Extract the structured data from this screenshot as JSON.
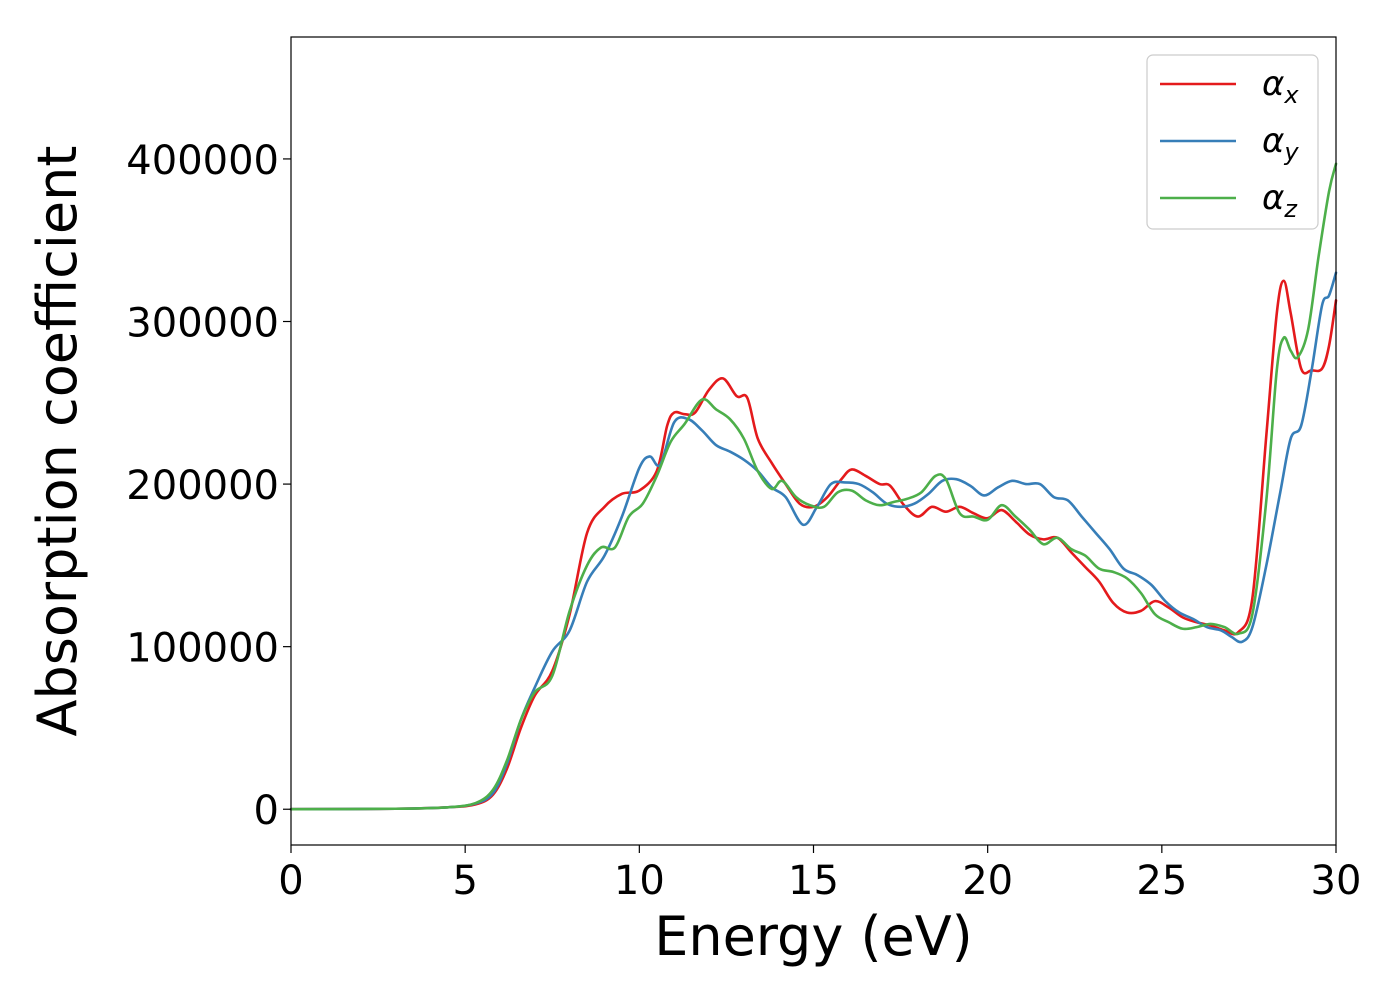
{
  "chart_data": {
    "type": "line",
    "title": "",
    "xlabel": "Energy (eV)",
    "ylabel": "Absorption coefficient",
    "xlim": [
      0,
      30
    ],
    "ylim": [
      -22000,
      475000
    ],
    "xticks": [
      0,
      5,
      10,
      15,
      20,
      25,
      30
    ],
    "xtick_labels": [
      "0",
      "5",
      "10",
      "15",
      "20",
      "25",
      "30"
    ],
    "yticks": [
      0,
      100000,
      200000,
      300000,
      400000
    ],
    "ytick_labels": [
      "0",
      "100000",
      "200000",
      "300000",
      "400000"
    ],
    "grid": false,
    "legend_position": "top-right",
    "series": [
      {
        "name": "α",
        "subscript": "x",
        "color": "#e41a1c",
        "points": [
          [
            0,
            0
          ],
          [
            3,
            300
          ],
          [
            4.5,
            1200
          ],
          [
            5.3,
            3000
          ],
          [
            5.8,
            9000
          ],
          [
            6.2,
            25000
          ],
          [
            6.6,
            50000
          ],
          [
            7,
            70000
          ],
          [
            7.5,
            85000
          ],
          [
            8,
            120000
          ],
          [
            8.5,
            170000
          ],
          [
            9,
            186000
          ],
          [
            9.5,
            194000
          ],
          [
            10,
            196000
          ],
          [
            10.5,
            208000
          ],
          [
            10.8,
            236000
          ],
          [
            11,
            244000
          ],
          [
            11.3,
            243000
          ],
          [
            11.6,
            244000
          ],
          [
            12,
            258000
          ],
          [
            12.4,
            265000
          ],
          [
            12.8,
            254000
          ],
          [
            13.1,
            253000
          ],
          [
            13.4,
            228000
          ],
          [
            13.8,
            213000
          ],
          [
            14.2,
            200000
          ],
          [
            14.6,
            188000
          ],
          [
            15,
            186000
          ],
          [
            15.4,
            192000
          ],
          [
            15.8,
            203000
          ],
          [
            16.1,
            209000
          ],
          [
            16.5,
            205000
          ],
          [
            16.9,
            200000
          ],
          [
            17.2,
            199000
          ],
          [
            17.6,
            187000
          ],
          [
            18,
            180000
          ],
          [
            18.4,
            186000
          ],
          [
            18.8,
            183000
          ],
          [
            19.2,
            186000
          ],
          [
            19.6,
            182000
          ],
          [
            20,
            179000
          ],
          [
            20.4,
            184000
          ],
          [
            20.8,
            177000
          ],
          [
            21.2,
            169000
          ],
          [
            21.6,
            166000
          ],
          [
            22,
            167000
          ],
          [
            22.4,
            158000
          ],
          [
            22.8,
            149000
          ],
          [
            23.2,
            140000
          ],
          [
            23.6,
            127000
          ],
          [
            24,
            121000
          ],
          [
            24.4,
            122000
          ],
          [
            24.8,
            128000
          ],
          [
            25.2,
            124000
          ],
          [
            25.6,
            118000
          ],
          [
            26,
            115000
          ],
          [
            26.4,
            113000
          ],
          [
            26.8,
            110000
          ],
          [
            27.2,
            109000
          ],
          [
            27.6,
            130000
          ],
          [
            28,
            230000
          ],
          [
            28.3,
            305000
          ],
          [
            28.5,
            325000
          ],
          [
            28.7,
            305000
          ],
          [
            29,
            271000
          ],
          [
            29.3,
            270000
          ],
          [
            29.6,
            271000
          ],
          [
            29.8,
            285000
          ],
          [
            30,
            313000
          ]
        ]
      },
      {
        "name": "α",
        "subscript": "y",
        "color": "#377eb8",
        "points": [
          [
            0,
            0
          ],
          [
            3,
            300
          ],
          [
            4.5,
            1200
          ],
          [
            5.3,
            3500
          ],
          [
            5.8,
            10000
          ],
          [
            6.2,
            28000
          ],
          [
            6.6,
            55000
          ],
          [
            7,
            75000
          ],
          [
            7.5,
            97000
          ],
          [
            8,
            110000
          ],
          [
            8.5,
            140000
          ],
          [
            9,
            156000
          ],
          [
            9.5,
            180000
          ],
          [
            10,
            210000
          ],
          [
            10.3,
            217000
          ],
          [
            10.6,
            212000
          ],
          [
            11,
            238000
          ],
          [
            11.4,
            240000
          ],
          [
            11.8,
            233000
          ],
          [
            12.2,
            224000
          ],
          [
            12.6,
            220000
          ],
          [
            13,
            215000
          ],
          [
            13.4,
            208000
          ],
          [
            13.8,
            198000
          ],
          [
            14.2,
            192000
          ],
          [
            14.7,
            175000
          ],
          [
            15.1,
            186000
          ],
          [
            15.5,
            200000
          ],
          [
            15.9,
            201000
          ],
          [
            16.3,
            200000
          ],
          [
            16.7,
            195000
          ],
          [
            17.1,
            188000
          ],
          [
            17.5,
            186000
          ],
          [
            17.9,
            188000
          ],
          [
            18.3,
            194000
          ],
          [
            18.7,
            202000
          ],
          [
            19.1,
            203000
          ],
          [
            19.5,
            199000
          ],
          [
            19.9,
            193000
          ],
          [
            20.3,
            198000
          ],
          [
            20.7,
            202000
          ],
          [
            21.1,
            200000
          ],
          [
            21.5,
            200000
          ],
          [
            21.9,
            192000
          ],
          [
            22.3,
            190000
          ],
          [
            22.7,
            180000
          ],
          [
            23.1,
            170000
          ],
          [
            23.5,
            160000
          ],
          [
            23.9,
            148000
          ],
          [
            24.3,
            144000
          ],
          [
            24.7,
            138000
          ],
          [
            25.1,
            128000
          ],
          [
            25.5,
            121000
          ],
          [
            25.9,
            117000
          ],
          [
            26.3,
            112000
          ],
          [
            26.7,
            110000
          ],
          [
            27,
            106000
          ],
          [
            27.3,
            103000
          ],
          [
            27.6,
            112000
          ],
          [
            28,
            150000
          ],
          [
            28.4,
            195000
          ],
          [
            28.7,
            228000
          ],
          [
            29,
            236000
          ],
          [
            29.3,
            270000
          ],
          [
            29.6,
            310000
          ],
          [
            29.8,
            316000
          ],
          [
            30,
            330000
          ]
        ]
      },
      {
        "name": "α",
        "subscript": "z",
        "color": "#4daf4a",
        "points": [
          [
            0,
            0
          ],
          [
            3,
            300
          ],
          [
            4.5,
            1200
          ],
          [
            5.3,
            3800
          ],
          [
            5.8,
            12000
          ],
          [
            6.2,
            30000
          ],
          [
            6.6,
            55000
          ],
          [
            7,
            72000
          ],
          [
            7.5,
            82000
          ],
          [
            8,
            122000
          ],
          [
            8.5,
            150000
          ],
          [
            8.9,
            161000
          ],
          [
            9.3,
            161000
          ],
          [
            9.7,
            180000
          ],
          [
            10.1,
            188000
          ],
          [
            10.5,
            205000
          ],
          [
            10.9,
            226000
          ],
          [
            11.3,
            237000
          ],
          [
            11.8,
            252000
          ],
          [
            12.2,
            246000
          ],
          [
            12.6,
            240000
          ],
          [
            13,
            228000
          ],
          [
            13.4,
            208000
          ],
          [
            13.8,
            197000
          ],
          [
            14.1,
            202000
          ],
          [
            14.5,
            192000
          ],
          [
            14.9,
            187000
          ],
          [
            15.3,
            186000
          ],
          [
            15.7,
            195000
          ],
          [
            16.1,
            196000
          ],
          [
            16.5,
            190000
          ],
          [
            16.9,
            187000
          ],
          [
            17.3,
            189000
          ],
          [
            17.7,
            191000
          ],
          [
            18.1,
            195000
          ],
          [
            18.5,
            205000
          ],
          [
            18.8,
            203000
          ],
          [
            19.2,
            182000
          ],
          [
            19.6,
            180000
          ],
          [
            20,
            178000
          ],
          [
            20.4,
            187000
          ],
          [
            20.8,
            180000
          ],
          [
            21.2,
            172000
          ],
          [
            21.6,
            163000
          ],
          [
            22,
            167000
          ],
          [
            22.4,
            160000
          ],
          [
            22.8,
            156000
          ],
          [
            23.2,
            148000
          ],
          [
            23.6,
            146000
          ],
          [
            24,
            142000
          ],
          [
            24.4,
            133000
          ],
          [
            24.8,
            120000
          ],
          [
            25.2,
            115000
          ],
          [
            25.6,
            111000
          ],
          [
            26,
            112000
          ],
          [
            26.4,
            114000
          ],
          [
            26.8,
            112000
          ],
          [
            27.2,
            108000
          ],
          [
            27.6,
            120000
          ],
          [
            28,
            190000
          ],
          [
            28.3,
            270000
          ],
          [
            28.5,
            290000
          ],
          [
            28.7,
            282000
          ],
          [
            28.9,
            278000
          ],
          [
            29.2,
            295000
          ],
          [
            29.5,
            340000
          ],
          [
            29.8,
            380000
          ],
          [
            30,
            397000
          ]
        ]
      }
    ]
  }
}
